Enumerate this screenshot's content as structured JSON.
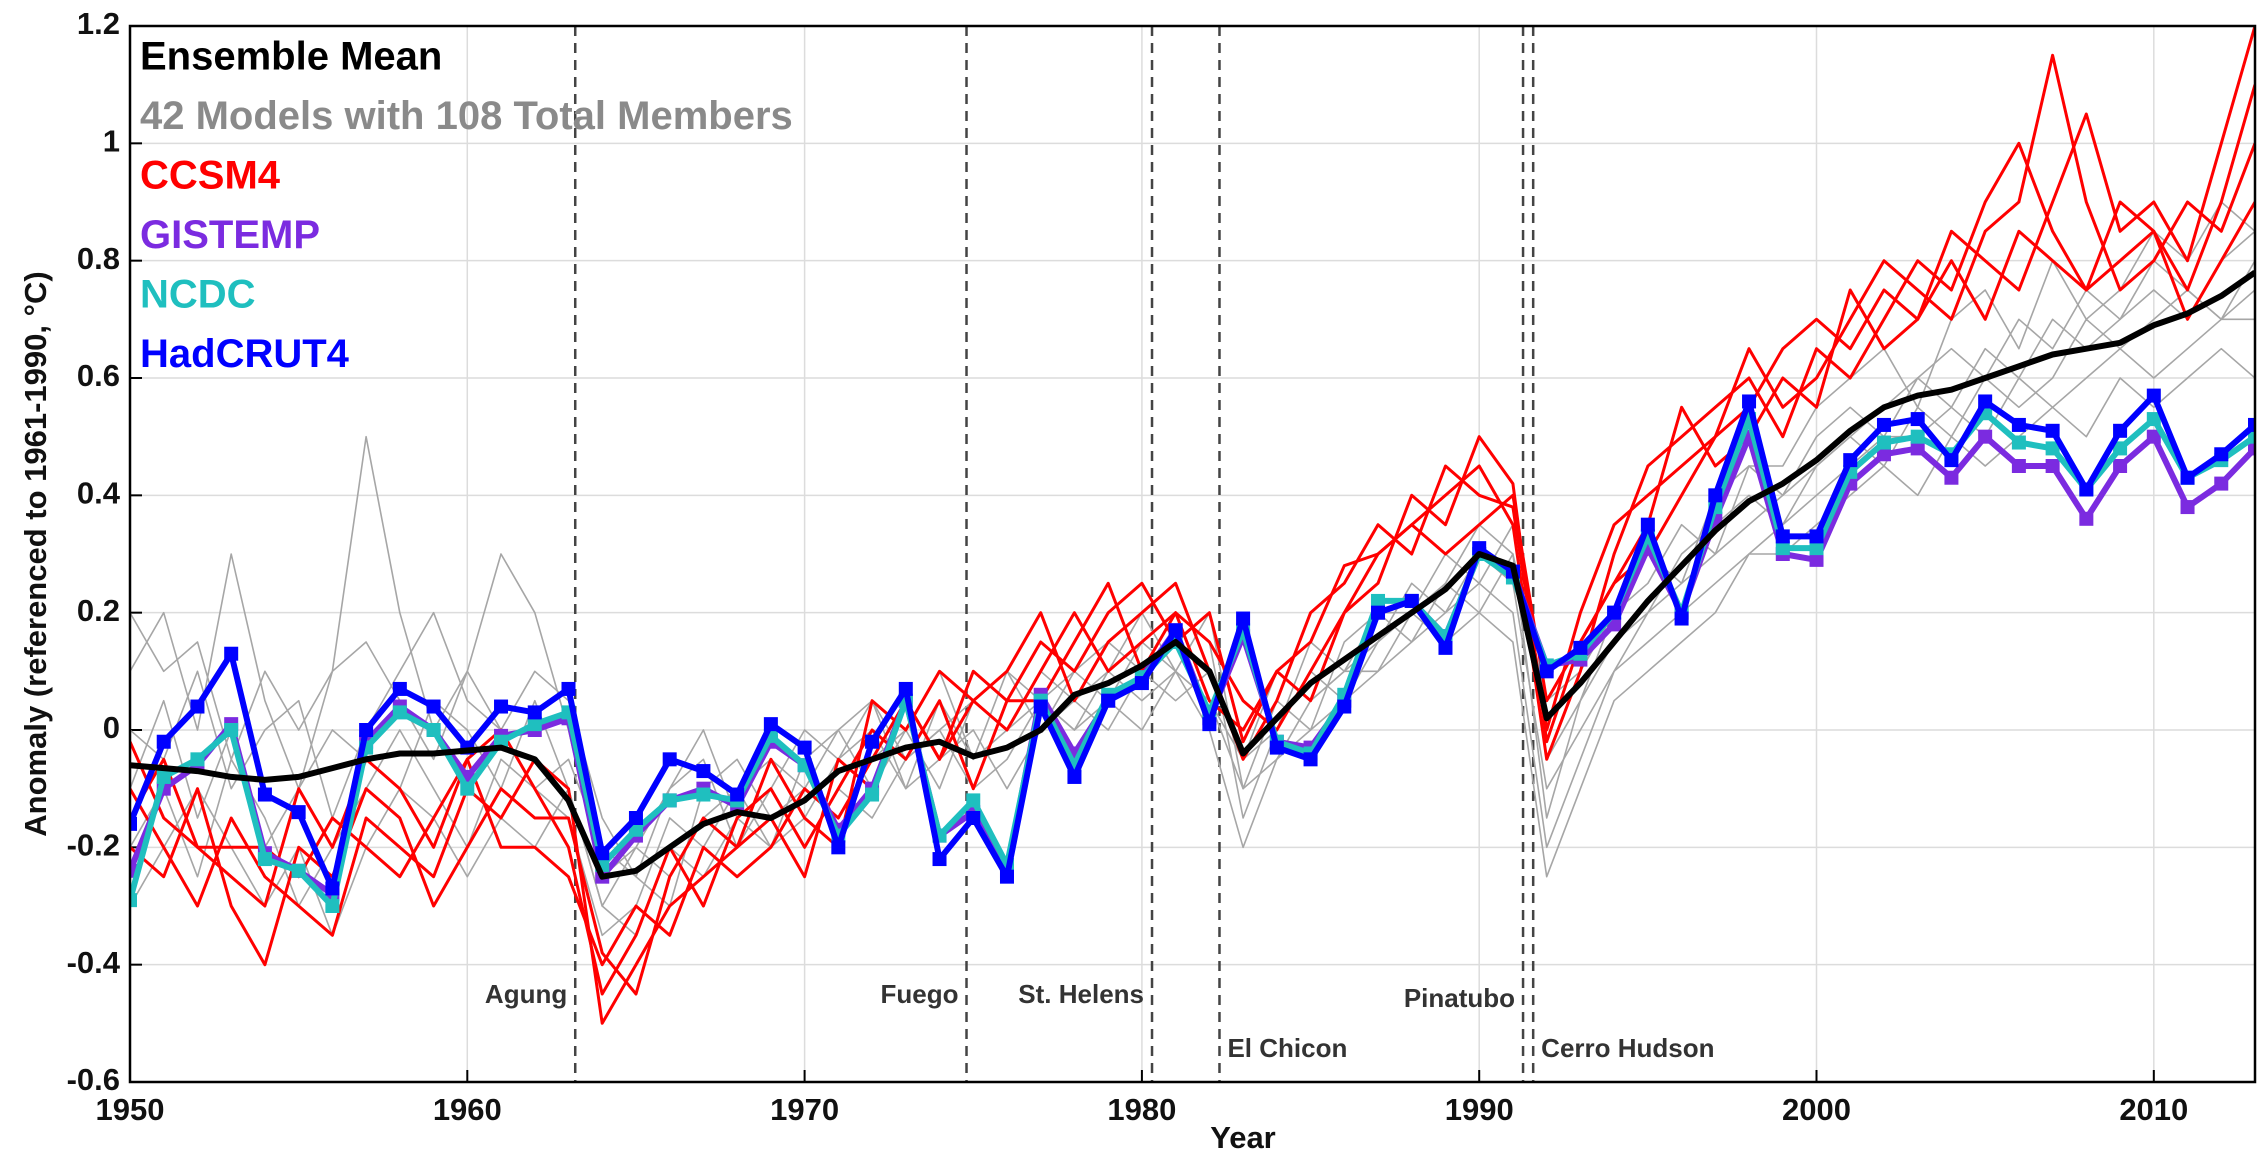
{
  "chart_data": {
    "type": "line",
    "x_label": "Year",
    "y_label": "Anomaly (referenced to 1961-1990, °C)",
    "x": [
      1950,
      1951,
      1952,
      1953,
      1954,
      1955,
      1956,
      1957,
      1958,
      1959,
      1960,
      1961,
      1962,
      1963,
      1964,
      1965,
      1966,
      1967,
      1968,
      1969,
      1970,
      1971,
      1972,
      1973,
      1974,
      1975,
      1976,
      1977,
      1978,
      1979,
      1980,
      1981,
      1982,
      1983,
      1984,
      1985,
      1986,
      1987,
      1988,
      1989,
      1990,
      1991,
      1992,
      1993,
      1994,
      1995,
      1996,
      1997,
      1998,
      1999,
      2000,
      2001,
      2002,
      2003,
      2004,
      2005,
      2006,
      2007,
      2008,
      2009,
      2010,
      2011,
      2012,
      2013
    ],
    "xlim": [
      1950,
      2013
    ],
    "xticks": [
      1950,
      1960,
      1970,
      1980,
      1990,
      2000,
      2010
    ],
    "ylim": [
      -0.6,
      1.2
    ],
    "yticks": [
      -0.6,
      -0.4,
      -0.2,
      0,
      0.2,
      0.4,
      0.6,
      0.8,
      1,
      1.2
    ],
    "grid": true,
    "legend": "upper left",
    "series": [
      {
        "name": "Ensemble Mean",
        "color": "#000000",
        "values": [
          -0.06,
          -0.065,
          -0.07,
          -0.08,
          -0.085,
          -0.08,
          -0.065,
          -0.05,
          -0.04,
          -0.04,
          -0.035,
          -0.03,
          -0.05,
          -0.12,
          -0.25,
          -0.24,
          -0.2,
          -0.16,
          -0.14,
          -0.15,
          -0.12,
          -0.07,
          -0.05,
          -0.03,
          -0.02,
          -0.045,
          -0.03,
          0.0,
          0.06,
          0.08,
          0.11,
          0.15,
          0.1,
          -0.04,
          0.02,
          0.08,
          0.12,
          0.16,
          0.2,
          0.24,
          0.3,
          0.28,
          0.02,
          0.08,
          0.15,
          0.22,
          0.28,
          0.34,
          0.39,
          0.42,
          0.46,
          0.51,
          0.55,
          0.57,
          0.58,
          0.6,
          0.62,
          0.64,
          0.65,
          0.66,
          0.69,
          0.71,
          0.74,
          0.78
        ]
      },
      {
        "name": "42 Models with 108 Total Members",
        "color": "#a6a6a6",
        "members": [
          [
            0.1,
            0.2,
            0.0,
            0.3,
            0.05,
            -0.1,
            0.1,
            0.5,
            0.2,
            0.0,
            0.1,
            0.3,
            0.2,
            0.0,
            -0.25,
            -0.2,
            -0.1,
            0.0,
            -0.15,
            -0.2,
            -0.05,
            0.0,
            -0.1,
            0.0,
            0.1,
            -0.05,
            0.0,
            0.05,
            0.1,
            0.15,
            0.1,
            0.2,
            0.15,
            -0.15,
            0.0,
            0.1,
            0.05,
            0.15,
            0.25,
            0.2,
            0.3,
            0.25,
            -0.1,
            0.0,
            0.1,
            0.2,
            0.25,
            0.3,
            0.35,
            0.4,
            0.45,
            0.5,
            0.55,
            0.6,
            0.55,
            0.65,
            0.6,
            0.7,
            0.65,
            0.7,
            0.75,
            0.7,
            0.8,
            0.85
          ],
          [
            -0.2,
            -0.1,
            -0.25,
            -0.05,
            -0.15,
            -0.3,
            -0.2,
            -0.1,
            0.0,
            -0.1,
            -0.2,
            -0.05,
            -0.1,
            -0.15,
            -0.35,
            -0.3,
            -0.15,
            -0.2,
            -0.1,
            -0.2,
            -0.15,
            -0.05,
            0.0,
            -0.1,
            -0.05,
            0.0,
            -0.1,
            0.0,
            0.05,
            0.1,
            0.05,
            0.1,
            0.0,
            -0.2,
            -0.05,
            0.05,
            0.1,
            0.1,
            0.15,
            0.2,
            0.25,
            0.2,
            -0.2,
            -0.05,
            0.1,
            0.15,
            0.2,
            0.25,
            0.3,
            0.35,
            0.4,
            0.45,
            0.5,
            0.5,
            0.55,
            0.5,
            0.6,
            0.55,
            0.6,
            0.65,
            0.6,
            0.65,
            0.7,
            0.7
          ],
          [
            0.0,
            -0.05,
            0.1,
            -0.1,
            0.0,
            0.05,
            -0.15,
            0.0,
            0.1,
            0.2,
            0.05,
            0.0,
            -0.1,
            -0.05,
            -0.2,
            -0.25,
            -0.3,
            -0.1,
            -0.05,
            -0.15,
            -0.1,
            0.0,
            0.05,
            -0.05,
            0.0,
            0.05,
            0.1,
            0.0,
            0.1,
            0.05,
            0.15,
            0.1,
            0.2,
            -0.1,
            0.05,
            0.0,
            0.15,
            0.2,
            0.15,
            0.25,
            0.35,
            0.3,
            0.05,
            0.1,
            0.2,
            0.25,
            0.35,
            0.3,
            0.45,
            0.4,
            0.5,
            0.55,
            0.5,
            0.6,
            0.65,
            0.6,
            0.7,
            0.65,
            0.75,
            0.7,
            0.8,
            0.75,
            0.7,
            0.8
          ],
          [
            -0.1,
            0.05,
            -0.15,
            0.0,
            -0.2,
            -0.1,
            0.0,
            -0.05,
            -0.1,
            0.05,
            0.0,
            -0.1,
            0.05,
            -0.1,
            -0.3,
            -0.2,
            -0.25,
            -0.15,
            -0.1,
            -0.05,
            -0.1,
            -0.15,
            -0.05,
            0.0,
            -0.1,
            0.05,
            0.0,
            0.1,
            0.05,
            0.0,
            0.1,
            0.05,
            0.1,
            -0.05,
            0.1,
            0.05,
            0.1,
            0.15,
            0.2,
            0.25,
            0.2,
            0.3,
            -0.15,
            0.05,
            0.15,
            0.2,
            0.3,
            0.35,
            0.4,
            0.35,
            0.45,
            0.5,
            0.45,
            0.55,
            0.5,
            0.6,
            0.55,
            0.6,
            0.7,
            0.65,
            0.7,
            0.75,
            0.7,
            0.75
          ],
          [
            0.2,
            0.1,
            0.15,
            -0.05,
            0.1,
            0.0,
            0.1,
            0.15,
            0.05,
            -0.05,
            0.1,
            0.0,
            0.1,
            0.05,
            -0.15,
            -0.25,
            -0.1,
            -0.05,
            -0.2,
            -0.1,
            0.0,
            -0.05,
            0.05,
            -0.1,
            0.05,
            -0.05,
            0.1,
            0.05,
            0.0,
            0.1,
            0.2,
            0.1,
            0.05,
            -0.05,
            0.0,
            0.15,
            0.1,
            0.2,
            0.2,
            0.3,
            0.25,
            0.35,
            -0.05,
            0.05,
            0.2,
            0.3,
            0.25,
            0.4,
            0.45,
            0.45,
            0.55,
            0.6,
            0.65,
            0.55,
            0.7,
            0.75,
            0.65,
            0.8,
            0.7,
            0.75,
            0.85,
            0.8,
            0.9,
            0.85
          ],
          [
            -0.3,
            -0.2,
            -0.1,
            -0.2,
            -0.3,
            -0.2,
            -0.35,
            -0.2,
            -0.1,
            -0.15,
            -0.25,
            -0.15,
            -0.2,
            -0.1,
            -0.3,
            -0.35,
            -0.2,
            -0.25,
            -0.15,
            -0.1,
            -0.2,
            -0.1,
            -0.15,
            -0.05,
            0.0,
            -0.1,
            -0.05,
            0.05,
            0.0,
            0.05,
            0.0,
            0.1,
            0.05,
            -0.1,
            -0.05,
            0.0,
            0.05,
            0.1,
            0.2,
            0.15,
            0.2,
            0.15,
            -0.25,
            -0.1,
            0.05,
            0.1,
            0.15,
            0.2,
            0.3,
            0.3,
            0.35,
            0.4,
            0.45,
            0.4,
            0.5,
            0.45,
            0.5,
            0.55,
            0.5,
            0.6,
            0.55,
            0.6,
            0.65,
            0.6
          ]
        ]
      },
      {
        "name": "CCSM4",
        "color": "#ff0000",
        "members": [
          [
            -0.02,
            -0.15,
            -0.2,
            -0.25,
            -0.3,
            -0.1,
            -0.2,
            -0.05,
            -0.1,
            -0.2,
            -0.05,
            0.0,
            -0.1,
            -0.2,
            -0.45,
            -0.35,
            -0.2,
            -0.3,
            -0.15,
            -0.1,
            -0.2,
            -0.1,
            0.0,
            -0.05,
            0.05,
            -0.1,
            0.05,
            0.15,
            0.1,
            0.2,
            0.25,
            0.15,
            0.2,
            -0.02,
            0.1,
            0.15,
            0.28,
            0.3,
            0.35,
            0.4,
            0.45,
            0.35,
            -0.05,
            0.1,
            0.3,
            0.45,
            0.5,
            0.55,
            0.6,
            0.5,
            0.65,
            0.6,
            0.7,
            0.8,
            0.75,
            0.9,
            1.0,
            0.85,
            0.75,
            0.8,
            0.85,
            0.75,
            0.9,
            1.1
          ],
          [
            -0.1,
            -0.2,
            -0.3,
            -0.15,
            -0.25,
            -0.3,
            -0.35,
            -0.15,
            -0.2,
            -0.25,
            -0.1,
            -0.15,
            -0.05,
            -0.1,
            -0.5,
            -0.4,
            -0.3,
            -0.25,
            -0.2,
            -0.15,
            -0.25,
            -0.05,
            -0.1,
            0.05,
            -0.05,
            0.05,
            0.1,
            0.2,
            0.05,
            0.15,
            0.2,
            0.25,
            0.1,
            -0.05,
            0.05,
            0.2,
            0.25,
            0.35,
            0.3,
            0.45,
            0.4,
            0.38,
            0.0,
            0.2,
            0.35,
            0.4,
            0.45,
            0.5,
            0.65,
            0.55,
            0.6,
            0.7,
            0.8,
            0.75,
            0.7,
            0.85,
            0.9,
            1.15,
            0.9,
            0.75,
            0.8,
            0.9,
            0.85,
            1.0
          ],
          [
            -0.2,
            -0.25,
            -0.1,
            -0.3,
            -0.4,
            -0.2,
            -0.25,
            -0.1,
            -0.15,
            -0.3,
            -0.2,
            -0.1,
            -0.15,
            -0.15,
            -0.38,
            -0.45,
            -0.25,
            -0.15,
            -0.2,
            -0.05,
            -0.15,
            -0.2,
            0.05,
            0.0,
            0.1,
            0.05,
            0.0,
            0.1,
            0.2,
            0.1,
            0.15,
            0.2,
            0.15,
            0.05,
            0.0,
            0.1,
            0.2,
            0.25,
            0.4,
            0.35,
            0.5,
            0.42,
            -0.02,
            0.15,
            0.25,
            0.35,
            0.55,
            0.45,
            0.5,
            0.6,
            0.55,
            0.75,
            0.65,
            0.7,
            0.85,
            0.8,
            0.75,
            0.9,
            1.05,
            0.85,
            0.9,
            0.8,
            1.0,
            1.2
          ],
          [
            -0.15,
            -0.05,
            -0.2,
            -0.2,
            -0.2,
            -0.25,
            -0.15,
            -0.2,
            -0.25,
            -0.15,
            -0.05,
            -0.2,
            -0.2,
            -0.25,
            -0.4,
            -0.3,
            -0.35,
            -0.2,
            -0.25,
            -0.2,
            -0.1,
            -0.15,
            -0.05,
            0.05,
            -0.05,
            0.1,
            0.05,
            0.05,
            0.15,
            0.25,
            0.1,
            0.2,
            0.05,
            0.0,
            0.1,
            0.05,
            0.2,
            0.3,
            0.35,
            0.3,
            0.35,
            0.4,
            0.05,
            0.15,
            0.25,
            0.3,
            0.4,
            0.5,
            0.55,
            0.65,
            0.7,
            0.65,
            0.75,
            0.7,
            0.8,
            0.7,
            0.85,
            0.8,
            0.75,
            0.9,
            0.85,
            0.7,
            0.8,
            0.9
          ]
        ]
      },
      {
        "name": "GISTEMP",
        "color": "#7b2be0",
        "marker": "square",
        "values": [
          -0.24,
          -0.1,
          -0.06,
          0.01,
          -0.21,
          -0.24,
          -0.28,
          -0.02,
          0.04,
          0.0,
          -0.08,
          -0.01,
          0.0,
          0.02,
          -0.25,
          -0.18,
          -0.12,
          -0.1,
          -0.13,
          -0.02,
          -0.06,
          -0.17,
          -0.1,
          0.05,
          -0.18,
          -0.14,
          -0.24,
          0.06,
          -0.04,
          0.05,
          0.09,
          0.17,
          0.02,
          0.16,
          -0.02,
          -0.03,
          0.05,
          0.2,
          0.22,
          0.16,
          0.3,
          0.27,
          0.11,
          0.12,
          0.18,
          0.31,
          0.2,
          0.36,
          0.5,
          0.3,
          0.29,
          0.42,
          0.47,
          0.48,
          0.43,
          0.5,
          0.45,
          0.45,
          0.36,
          0.45,
          0.5,
          0.38,
          0.42,
          0.48
        ]
      },
      {
        "name": "NCDC",
        "color": "#1fbfbf",
        "marker": "square",
        "values": [
          -0.29,
          -0.08,
          -0.05,
          0.0,
          -0.22,
          -0.24,
          -0.3,
          -0.03,
          0.03,
          0.0,
          -0.1,
          -0.02,
          0.01,
          0.03,
          -0.23,
          -0.17,
          -0.12,
          -0.11,
          -0.12,
          -0.01,
          -0.06,
          -0.18,
          -0.11,
          0.05,
          -0.18,
          -0.12,
          -0.23,
          0.05,
          -0.06,
          0.06,
          0.09,
          0.15,
          0.03,
          0.17,
          -0.02,
          -0.04,
          0.06,
          0.22,
          0.22,
          0.16,
          0.3,
          0.26,
          0.11,
          0.13,
          0.2,
          0.33,
          0.2,
          0.38,
          0.53,
          0.31,
          0.31,
          0.44,
          0.49,
          0.5,
          0.47,
          0.54,
          0.49,
          0.48,
          0.41,
          0.48,
          0.53,
          0.43,
          0.46,
          0.5
        ]
      },
      {
        "name": "HadCRUT4",
        "color": "#0000ff",
        "marker": "square",
        "values": [
          -0.16,
          -0.02,
          0.04,
          0.13,
          -0.11,
          -0.14,
          -0.27,
          0.0,
          0.07,
          0.04,
          -0.03,
          0.04,
          0.03,
          0.07,
          -0.21,
          -0.15,
          -0.05,
          -0.07,
          -0.11,
          0.01,
          -0.03,
          -0.2,
          -0.02,
          0.07,
          -0.22,
          -0.15,
          -0.25,
          0.04,
          -0.08,
          0.05,
          0.08,
          0.17,
          0.01,
          0.19,
          -0.03,
          -0.05,
          0.04,
          0.2,
          0.22,
          0.14,
          0.31,
          0.27,
          0.1,
          0.14,
          0.2,
          0.35,
          0.19,
          0.4,
          0.56,
          0.33,
          0.33,
          0.46,
          0.52,
          0.53,
          0.46,
          0.56,
          0.52,
          0.51,
          0.41,
          0.51,
          0.57,
          0.43,
          0.47,
          0.52
        ]
      }
    ],
    "annotations": [
      {
        "label": "Agung",
        "x": 1963.2
      },
      {
        "label": "Fuego",
        "x": 1974.8
      },
      {
        "label": "St. Helens",
        "x": 1980.3
      },
      {
        "label": "El Chicon",
        "x": 1982.3
      },
      {
        "label": "Pinatubo",
        "x": 1991.3
      },
      {
        "label": "Cerro Hudson",
        "x": 1991.6
      }
    ]
  }
}
